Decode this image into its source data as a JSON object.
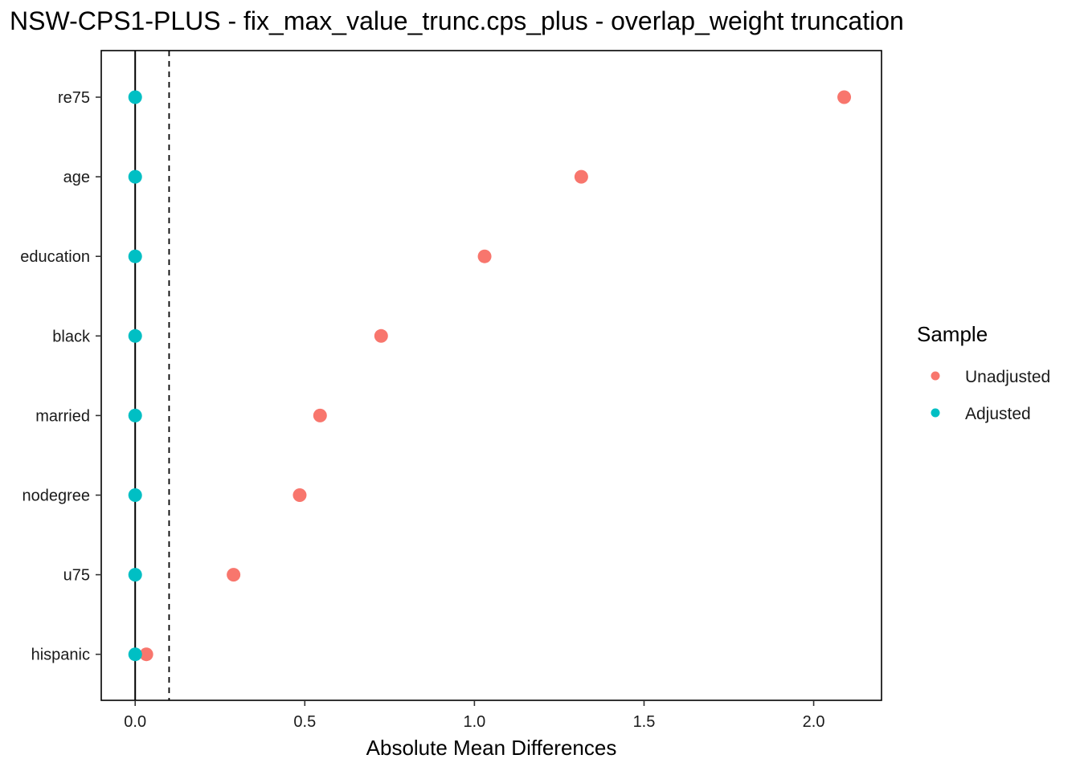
{
  "chart_data": {
    "type": "scatter",
    "title": "NSW-CPS1-PLUS - fix_max_value_trunc.cps_plus - overlap_weight truncation",
    "xlabel": "Absolute Mean Differences",
    "ylabel": "",
    "categories": [
      "re75",
      "age",
      "education",
      "black",
      "married",
      "nodegree",
      "u75",
      "hispanic"
    ],
    "xlim": [
      -0.1,
      2.2
    ],
    "x_ticks": [
      0.0,
      0.5,
      1.0,
      1.5,
      2.0
    ],
    "x_tick_labels": [
      "0.0",
      "0.5",
      "1.0",
      "1.5",
      "2.0"
    ],
    "threshold_line": 0.1,
    "reference_line": 0.0,
    "grid": false,
    "legend": {
      "title": "Sample",
      "placement": "right"
    },
    "series": [
      {
        "name": "Unadjusted",
        "color": "#F8766D",
        "values": [
          2.09,
          1.315,
          1.03,
          0.725,
          0.545,
          0.485,
          0.29,
          0.033
        ]
      },
      {
        "name": "Adjusted",
        "color": "#00BFC4",
        "values": [
          0.0,
          0.0,
          0.0,
          0.0,
          0.0,
          0.0,
          0.0,
          0.0
        ]
      }
    ]
  }
}
